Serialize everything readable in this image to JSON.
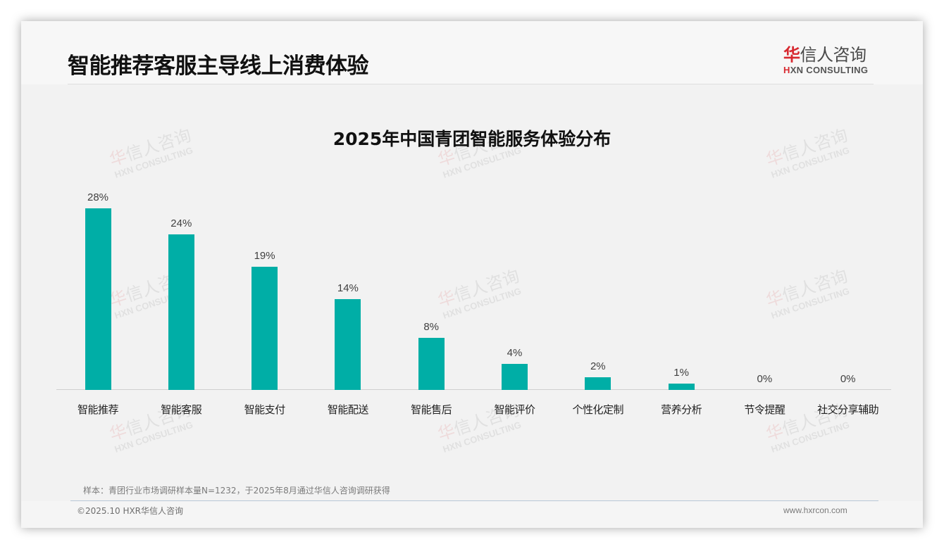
{
  "slide": {
    "title": "智能推荐客服主导线上消费体验",
    "logo": {
      "cn_red": "华",
      "cn_rest": "信人咨询",
      "en_red": "H",
      "en_rest": "XN CONSULTING"
    },
    "watermark": {
      "cn_red": "华",
      "cn_rest": "信人咨询",
      "en": "HXN CONSULTING"
    },
    "footnote": "样本：青团行业市场调研样本量N=1232，于2025年8月通过华信人咨询调研获得",
    "copyright": "©2025.10 HXR华信人咨询",
    "website": "www.hxrcon.com"
  },
  "colors": {
    "bar": "#00aea6",
    "brand_red": "#d7282f",
    "background": "#f2f2f2"
  },
  "chart_data": {
    "type": "bar",
    "title": "2025年中国青团智能服务体验分布",
    "xlabel": "",
    "ylabel": "",
    "categories": [
      "智能推荐",
      "智能客服",
      "智能支付",
      "智能配送",
      "智能售后",
      "智能评价",
      "个性化定制",
      "营养分析",
      "节令提醒",
      "社交分享辅助"
    ],
    "values": [
      28,
      24,
      19,
      14,
      8,
      4,
      2,
      1,
      0,
      0
    ],
    "value_labels": [
      "28%",
      "24%",
      "19%",
      "14%",
      "8%",
      "4%",
      "2%",
      "1%",
      "0%",
      "0%"
    ],
    "unit": "%",
    "ylim": [
      0,
      30
    ],
    "grid": false,
    "legend": "none",
    "y_axis_visible": false
  }
}
